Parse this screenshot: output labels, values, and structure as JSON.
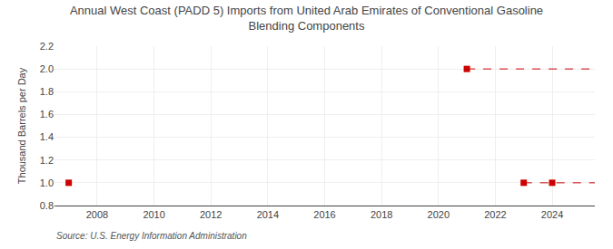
{
  "chart_data": {
    "type": "scatter",
    "title": "Annual West Coast (PADD 5) Imports from United Arab Emirates of Conventional Gasoline\nBlending Components",
    "ylabel": "Thousand Barrels per Day",
    "annotations": [
      "Source: U.S. Energy Information Administration"
    ],
    "series": [
      {
        "type": "scatter",
        "marker": "square",
        "color": "#cc0000",
        "x": [
          2007,
          2021,
          2023,
          2024
        ],
        "values": [
          1.0,
          2.0,
          1.0,
          1.0
        ]
      },
      {
        "type": "line",
        "line_style": "dashed",
        "color": "#cc0000",
        "x": [
          2021,
          2025.5
        ],
        "values": [
          2.0,
          2.0
        ]
      },
      {
        "type": "line",
        "line_style": "dashed",
        "color": "#cc0000",
        "x": [
          2023,
          2025.5
        ],
        "values": [
          1.0,
          1.0
        ]
      }
    ],
    "xlim": [
      2006.5,
      2025.5
    ],
    "ylim": [
      0.8,
      2.2
    ],
    "xticks": [
      2008,
      2010,
      2012,
      2014,
      2016,
      2018,
      2020,
      2022,
      2024
    ],
    "yticks": [
      0.8,
      {
        "value": 1.0,
        "label": "1.0"
      },
      1.2,
      1.4,
      1.6,
      1.8,
      {
        "value": 2.0,
        "label": "2.0"
      },
      2.2
    ],
    "grid": true
  }
}
